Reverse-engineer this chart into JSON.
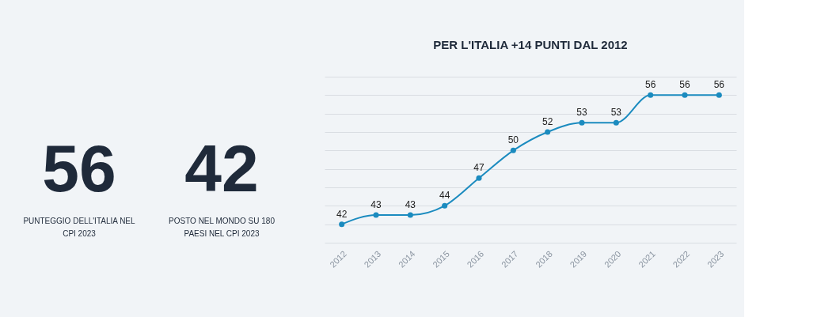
{
  "chart_data": [
    {
      "type": "other",
      "annotations": [
        "56",
        "PUNTEGGIO DELL'ITALIA NEL CPI 2023",
        "42",
        "POSTO NEL MONDO SU 180 PAESI NEL CPI 2023"
      ]
    },
    {
      "type": "line",
      "title": "PER L'ITALIA +14 PUNTI DAL 2012",
      "categories": [
        "2012",
        "2013",
        "2014",
        "2015",
        "2016",
        "2017",
        "2018",
        "2019",
        "2020",
        "2021",
        "2022",
        "2023"
      ],
      "series": [
        {
          "color": "#1b8bbf",
          "values": [
            42,
            43,
            43,
            44,
            47,
            50,
            52,
            53,
            53,
            56,
            56,
            56
          ]
        }
      ],
      "ylim": [
        40,
        58
      ],
      "yticks": [
        {
          "value": 40,
          "label": null
        },
        {
          "value": 42,
          "label": null
        },
        {
          "value": 44,
          "label": null
        },
        {
          "value": 46,
          "label": null
        },
        {
          "value": 48,
          "label": null
        },
        {
          "value": 50,
          "label": null
        },
        {
          "value": 52,
          "label": null
        },
        {
          "value": 54,
          "label": null
        },
        {
          "value": 56,
          "label": null
        },
        {
          "value": 58,
          "label": null
        }
      ],
      "tick_labels": "x",
      "grid": "y",
      "marker": "circle",
      "line_style": "solid",
      "data_labels": true
    }
  ]
}
